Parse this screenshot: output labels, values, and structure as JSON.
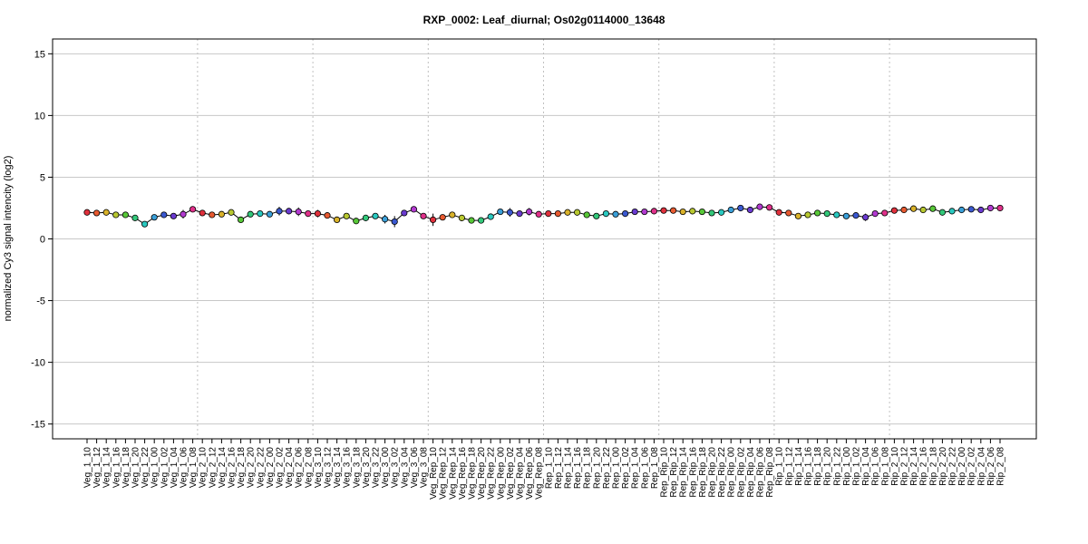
{
  "chart_data": {
    "type": "line",
    "title": "RXP_0002: Leaf_diurnal; Os02g0114000_13648",
    "xlabel": "",
    "ylabel": "normalized Cy3 signal intencity (log2)",
    "ylim": [
      -16.2,
      16.2
    ],
    "yticks": [
      -15,
      -10,
      -5,
      0,
      5,
      10,
      15
    ],
    "grid": true,
    "legend": "none",
    "categories": [
      "Veg_1_10",
      "Veg_1_12",
      "Veg_1_14",
      "Veg_1_16",
      "Veg_1_18",
      "Veg_1_20",
      "Veg_1_22",
      "Veg_1_00",
      "Veg_1_02",
      "Veg_1_04",
      "Veg_1_06",
      "Veg_1_08",
      "Veg_2_10",
      "Veg_2_12",
      "Veg_2_14",
      "Veg_2_16",
      "Veg_2_18",
      "Veg_2_20",
      "Veg_2_22",
      "Veg_2_00",
      "Veg_2_02",
      "Veg_2_04",
      "Veg_2_06",
      "Veg_2_08",
      "Veg_3_10",
      "Veg_3_12",
      "Veg_3_14",
      "Veg_3_16",
      "Veg_3_18",
      "Veg_3_20",
      "Veg_3_22",
      "Veg_3_00",
      "Veg_3_02",
      "Veg_3_04",
      "Veg_3_06",
      "Veg_3_08",
      "Veg_Rep_10",
      "Veg_Rep_12",
      "Veg_Rep_14",
      "Veg_Rep_16",
      "Veg_Rep_18",
      "Veg_Rep_20",
      "Veg_Rep_22",
      "Veg_Rep_00",
      "Veg_Rep_02",
      "Veg_Rep_04",
      "Veg_Rep_06",
      "Veg_Rep_08",
      "Rep_1_10",
      "Rep_1_12",
      "Rep_1_14",
      "Rep_1_16",
      "Rep_1_18",
      "Rep_1_20",
      "Rep_1_22",
      "Rep_1_00",
      "Rep_1_02",
      "Rep_1_04",
      "Rep_1_06",
      "Rep_1_08",
      "Rep_Rip_10",
      "Rep_Rip_12",
      "Rep_Rip_14",
      "Rep_Rip_16",
      "Rep_Rip_18",
      "Rep_Rip_20",
      "Rep_Rip_22",
      "Rep_Rip_00",
      "Rep_Rip_02",
      "Rep_Rip_04",
      "Rep_Rip_06",
      "Rep_Rip_08",
      "Rip_1_10",
      "Rip_1_12",
      "Rip_1_14",
      "Rip_1_16",
      "Rip_1_18",
      "Rip_1_20",
      "Rip_1_22",
      "Rip_1_00",
      "Rip_1_02",
      "Rip_1_04",
      "Rip_1_06",
      "Rip_1_08",
      "Rip_2_10",
      "Rip_2_12",
      "Rip_2_14",
      "Rip_2_16",
      "Rip_2_18",
      "Rip_2_20",
      "Rip_2_22",
      "Rip_2_00",
      "Rip_2_02",
      "Rip_2_04",
      "Rip_2_06",
      "Rip_2_08"
    ],
    "series": [
      {
        "values": [
          2.15,
          2.1,
          2.15,
          1.95,
          1.95,
          1.7,
          1.2,
          1.75,
          1.95,
          1.85,
          2.0,
          2.4,
          2.1,
          1.95,
          2.0,
          2.15,
          1.55,
          2.0,
          2.05,
          2.0,
          2.25,
          2.25,
          2.2,
          2.05,
          2.05,
          1.9,
          1.55,
          1.85,
          1.45,
          1.7,
          1.85,
          1.6,
          1.4,
          2.1,
          2.4,
          1.85,
          1.55,
          1.75,
          1.95,
          1.7,
          1.5,
          1.5,
          1.8,
          2.2,
          2.15,
          2.05,
          2.2,
          2.0,
          2.05,
          2.05,
          2.15,
          2.15,
          1.95,
          1.85,
          2.05,
          2.0,
          2.05,
          2.2,
          2.2,
          2.25,
          2.3,
          2.3,
          2.2,
          2.25,
          2.2,
          2.1,
          2.15,
          2.35,
          2.5,
          2.35,
          2.6,
          2.55,
          2.15,
          2.1,
          1.85,
          1.95,
          2.1,
          2.05,
          1.95,
          1.85,
          1.9,
          1.75,
          2.05,
          2.1,
          2.3,
          2.35,
          2.45,
          2.35,
          2.45,
          2.15,
          2.25,
          2.35,
          2.4,
          2.35,
          2.5,
          2.5
        ],
        "errors": [
          0.12,
          0.12,
          0.1,
          0.1,
          0.1,
          0.12,
          0.15,
          0.12,
          0.12,
          0.1,
          0.35,
          0.12,
          0.12,
          0.1,
          0.1,
          0.1,
          0.12,
          0.1,
          0.1,
          0.12,
          0.35,
          0.25,
          0.35,
          0.12,
          0.3,
          0.15,
          0.12,
          0.12,
          0.12,
          0.15,
          0.12,
          0.35,
          0.45,
          0.12,
          0.12,
          0.12,
          0.5,
          0.15,
          0.15,
          0.15,
          0.25,
          0.2,
          0.2,
          0.15,
          0.35,
          0.15,
          0.3,
          0.12,
          0.12,
          0.12,
          0.15,
          0.2,
          0.2,
          0.15,
          0.12,
          0.12,
          0.12,
          0.12,
          0.12,
          0.12,
          0.12,
          0.12,
          0.12,
          0.12,
          0.12,
          0.12,
          0.12,
          0.12,
          0.12,
          0.12,
          0.12,
          0.12,
          0.2,
          0.12,
          0.12,
          0.12,
          0.12,
          0.12,
          0.25,
          0.15,
          0.15,
          0.3,
          0.12,
          0.12,
          0.12,
          0.12,
          0.12,
          0.12,
          0.12,
          0.12,
          0.12,
          0.12,
          0.12,
          0.12,
          0.12,
          0.12
        ]
      }
    ],
    "point_colors": [
      "#e0303c",
      "#e85a30",
      "#d9b22a",
      "#b8c830",
      "#58c838",
      "#33c87a",
      "#2ac9c0",
      "#3a9fd8",
      "#3a58d0",
      "#6a3ad0",
      "#b23ad0",
      "#e0308a",
      "#e0303c",
      "#e85a30",
      "#d9b22a",
      "#b8c830",
      "#58c838",
      "#33c87a",
      "#2ac9c0",
      "#3a9fd8",
      "#3a58d0",
      "#6a3ad0",
      "#b23ad0",
      "#e0308a",
      "#e0303c",
      "#e85a30",
      "#d9b22a",
      "#b8c830",
      "#58c838",
      "#33c87a",
      "#2ac9c0",
      "#3a9fd8",
      "#3a58d0",
      "#6a3ad0",
      "#b23ad0",
      "#e0308a",
      "#e0303c",
      "#e85a30",
      "#d9b22a",
      "#b8c830",
      "#58c838",
      "#33c87a",
      "#2ac9c0",
      "#3a9fd8",
      "#3a58d0",
      "#6a3ad0",
      "#b23ad0",
      "#e0308a",
      "#e0303c",
      "#e85a30",
      "#d9b22a",
      "#b8c830",
      "#58c838",
      "#33c87a",
      "#2ac9c0",
      "#3a9fd8",
      "#3a58d0",
      "#6a3ad0",
      "#b23ad0",
      "#e0308a",
      "#e0303c",
      "#e85a30",
      "#d9b22a",
      "#b8c830",
      "#58c838",
      "#33c87a",
      "#2ac9c0",
      "#3a9fd8",
      "#3a58d0",
      "#6a3ad0",
      "#b23ad0",
      "#e0308a",
      "#e0303c",
      "#e85a30",
      "#d9b22a",
      "#b8c830",
      "#58c838",
      "#33c87a",
      "#2ac9c0",
      "#3a9fd8",
      "#3a58d0",
      "#6a3ad0",
      "#b23ad0",
      "#e0308a",
      "#e0303c",
      "#e85a30",
      "#d9b22a",
      "#b8c830",
      "#58c838",
      "#33c87a",
      "#2ac9c0",
      "#3a9fd8",
      "#3a58d0",
      "#6a3ad0",
      "#b23ad0",
      "#e0308a"
    ],
    "group_size": 12,
    "colors": {
      "line": "#000000",
      "grid": "#c8c8c8",
      "separator": "#c0c0c0",
      "frame": "#000000"
    }
  }
}
